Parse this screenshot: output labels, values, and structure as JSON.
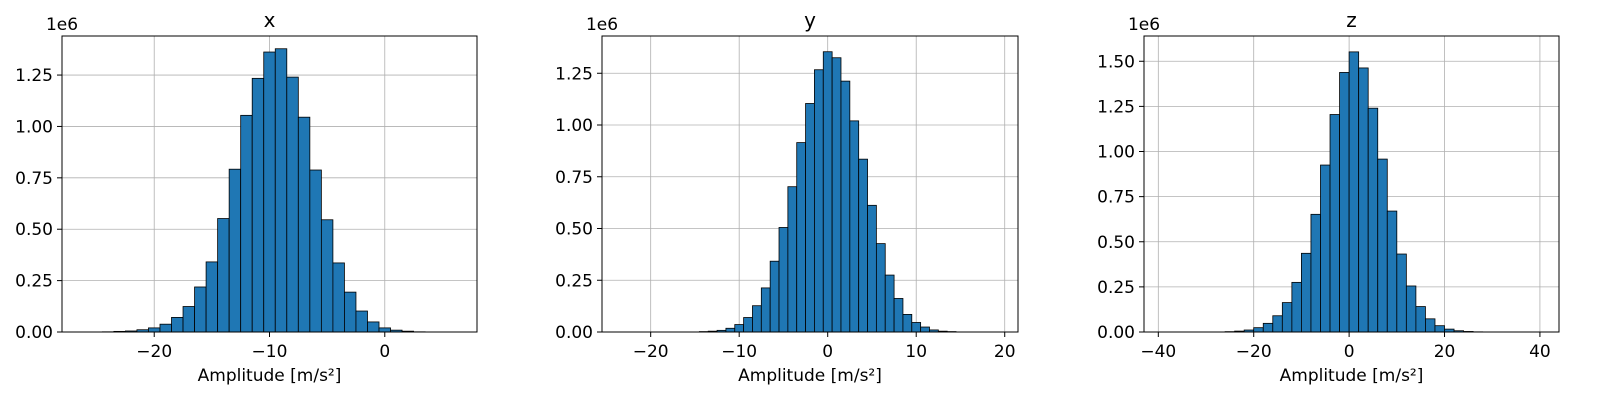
{
  "colors": {
    "bar_fill": "#1f77b4",
    "bar_edge": "#000000",
    "grid": "#b0b0b0",
    "axes": "#000000"
  },
  "chart_data": [
    {
      "type": "bar",
      "title": "x",
      "xlabel": "Amplitude [m/s²]",
      "ylabel": "",
      "y_offset_label": "1e6",
      "grid": true,
      "xlim": [
        -28,
        8
      ],
      "ylim": [
        0,
        1.44
      ],
      "xticks": [
        -20,
        -10,
        0
      ],
      "xtick_labels": [
        "−20",
        "−10",
        "0"
      ],
      "yticks": [
        0,
        0.25,
        0.5,
        0.75,
        1.0,
        1.25
      ],
      "ytick_labels": [
        "0.00",
        "0.25",
        "0.50",
        "0.75",
        "1.00",
        "1.25"
      ],
      "bin_range": [
        -26.2,
        6.8
      ],
      "bin_centers": [
        -24.0,
        -23.0,
        -22.0,
        -21.0,
        -20.0,
        -19.0,
        -18.0,
        -17.0,
        -16.0,
        -15.0,
        -14.0,
        -13.0,
        -12.0,
        -11.0,
        -10.0,
        -9.0,
        -8.0,
        -7.0,
        -6.0,
        -5.0,
        -4.0,
        -3.0,
        -2.0,
        -1.0,
        0.0,
        1.0,
        2.0,
        3.0
      ],
      "values": [
        0.001,
        0.003,
        0.005,
        0.011,
        0.02,
        0.038,
        0.071,
        0.124,
        0.219,
        0.341,
        0.552,
        0.792,
        1.054,
        1.234,
        1.362,
        1.378,
        1.24,
        1.045,
        0.788,
        0.546,
        0.336,
        0.194,
        0.102,
        0.049,
        0.02,
        0.009,
        0.004,
        0.001
      ]
    },
    {
      "type": "bar",
      "title": "y",
      "xlabel": "Amplitude [m/s²]",
      "ylabel": "",
      "y_offset_label": "1e6",
      "grid": true,
      "xlim": [
        -25.5,
        21.5
      ],
      "ylim": [
        0,
        1.43
      ],
      "xticks": [
        -20,
        -10,
        0,
        10,
        20
      ],
      "xtick_labels": [
        "−20",
        "−10",
        "0",
        "10",
        "20"
      ],
      "yticks": [
        0,
        0.25,
        0.5,
        0.75,
        1.0,
        1.25
      ],
      "ytick_labels": [
        "0.00",
        "0.25",
        "0.50",
        "0.75",
        "1.00",
        "1.25"
      ],
      "bin_range": [
        -23.5,
        19.5
      ],
      "bin_centers": [
        -14.0,
        -13.0,
        -12.0,
        -11.0,
        -10.0,
        -9.0,
        -8.0,
        -7.0,
        -6.0,
        -5.0,
        -4.0,
        -3.0,
        -2.0,
        -1.0,
        0.0,
        1.0,
        2.0,
        3.0,
        4.0,
        5.0,
        6.0,
        7.0,
        8.0,
        9.0,
        10.0,
        11.0,
        12.0,
        13.0,
        14.0
      ],
      "values": [
        0.002,
        0.004,
        0.008,
        0.018,
        0.036,
        0.07,
        0.127,
        0.213,
        0.342,
        0.505,
        0.702,
        0.915,
        1.104,
        1.267,
        1.354,
        1.325,
        1.212,
        1.02,
        0.835,
        0.612,
        0.427,
        0.275,
        0.162,
        0.085,
        0.046,
        0.024,
        0.01,
        0.004,
        0.002
      ]
    },
    {
      "type": "bar",
      "title": "z",
      "xlabel": "Amplitude [m/s²]",
      "ylabel": "",
      "y_offset_label": "1e6",
      "grid": true,
      "xlim": [
        -43,
        44
      ],
      "ylim": [
        0,
        1.64
      ],
      "xticks": [
        -40,
        -20,
        0,
        20,
        40
      ],
      "xtick_labels": [
        "−40",
        "−20",
        "0",
        "20",
        "40"
      ],
      "yticks": [
        0,
        0.25,
        0.5,
        0.75,
        1.0,
        1.25,
        1.5
      ],
      "ytick_labels": [
        "0.00",
        "0.25",
        "0.50",
        "0.75",
        "1.00",
        "1.25",
        "1.50"
      ],
      "bin_range": [
        -40,
        40
      ],
      "bin_centers": [
        -25.0,
        -23.0,
        -21.0,
        -19.0,
        -17.0,
        -15.0,
        -13.0,
        -11.0,
        -9.0,
        -7.0,
        -5.0,
        -3.0,
        -1.0,
        1.0,
        3.0,
        5.0,
        7.0,
        9.0,
        11.0,
        13.0,
        15.0,
        17.0,
        19.0,
        21.0,
        23.0,
        25.0,
        27.0
      ],
      "values": [
        0.002,
        0.005,
        0.011,
        0.024,
        0.048,
        0.09,
        0.163,
        0.275,
        0.436,
        0.652,
        0.925,
        1.205,
        1.438,
        1.552,
        1.463,
        1.24,
        0.958,
        0.67,
        0.432,
        0.255,
        0.141,
        0.073,
        0.035,
        0.016,
        0.007,
        0.003,
        0.001
      ]
    }
  ]
}
